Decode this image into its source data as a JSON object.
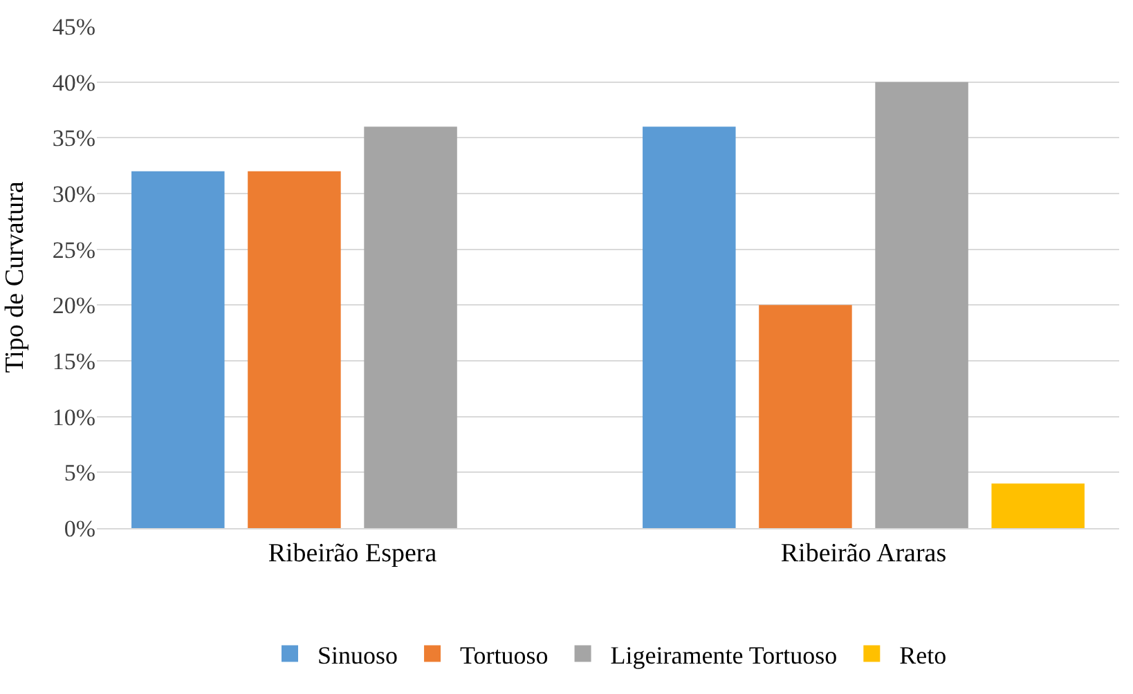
{
  "chart_data": {
    "type": "bar",
    "ylabel": "Tipo de Curvatura",
    "categories": [
      "Ribeirão Espera",
      "Ribeirão Araras"
    ],
    "series": [
      {
        "name": "Sinuoso",
        "color": "#5b9bd5",
        "values": [
          32,
          36
        ]
      },
      {
        "name": "Tortuoso",
        "color": "#ed7d31",
        "values": [
          32,
          20
        ]
      },
      {
        "name": "Ligeiramente Tortuoso",
        "color": "#a5a5a5",
        "values": [
          36,
          40
        ]
      },
      {
        "name": "Reto",
        "color": "#ffc000",
        "values": [
          null,
          4
        ]
      }
    ],
    "ylim": [
      0,
      45
    ],
    "yticks": [
      {
        "value": 0,
        "label": "0%"
      },
      {
        "value": 5,
        "label": "5%"
      },
      {
        "value": 10,
        "label": "10%"
      },
      {
        "value": 15,
        "label": "15%"
      },
      {
        "value": 20,
        "label": "20%"
      },
      {
        "value": 25,
        "label": "25%"
      },
      {
        "value": 30,
        "label": "30%"
      },
      {
        "value": 35,
        "label": "35%"
      },
      {
        "value": 40,
        "label": "40%"
      },
      {
        "value": 45,
        "label": "45%"
      }
    ],
    "grid": "y",
    "legend": "bottom"
  }
}
